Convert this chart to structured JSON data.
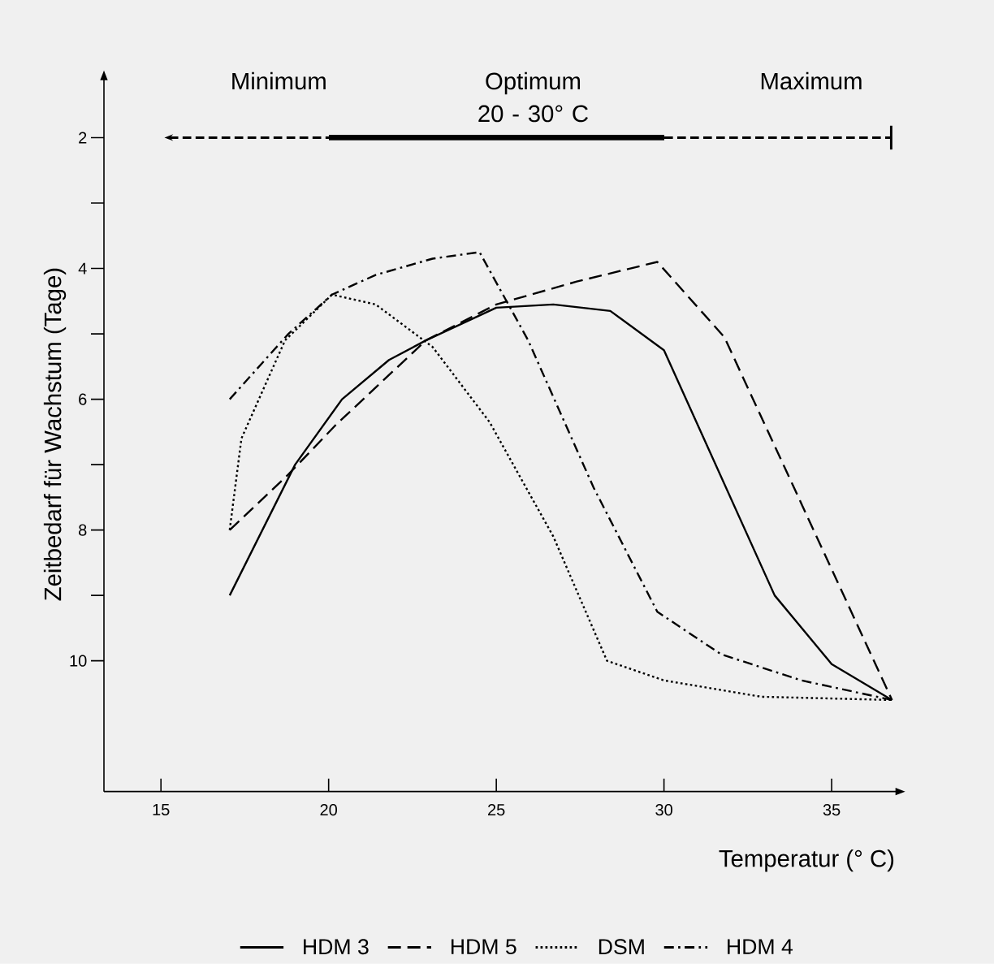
{
  "chart_data": {
    "type": "line",
    "xlabel": "Temperatur (° C)",
    "ylabel": "Zeitbedarf für Wachstum (Tage)",
    "xlim": [
      13.3,
      37
    ],
    "ylim": [
      12,
      1.07
    ],
    "xticks": [
      15,
      20,
      25,
      30,
      35
    ],
    "yticks": [
      2,
      {
        "value": 3,
        "label": null
      },
      4,
      {
        "value": 5,
        "label": null
      },
      6,
      {
        "value": 7,
        "label": null
      },
      8,
      {
        "value": 9,
        "label": null
      },
      10
    ],
    "legend": "bottom",
    "annotations": [
      "Minimum",
      "Optimum 20 - 30° C",
      "Maximum"
    ],
    "series": [
      {
        "name": "HDM 3",
        "color": "#000000",
        "line_style": "solid",
        "x": [
          17.05,
          19.0,
          20.4,
          21.8,
          22.9,
          25.0,
          26.7,
          28.4,
          30.0,
          33.3,
          35.0,
          36.8
        ],
        "values": [
          9.0,
          7.0,
          6.0,
          5.4,
          5.1,
          4.6,
          4.55,
          4.65,
          5.25,
          9.0,
          10.05,
          10.6
        ]
      },
      {
        "name": "HDM 5",
        "color": "#000000",
        "line_style": "dashed",
        "x": [
          17.05,
          18.8,
          20.2,
          22.9,
          25.0,
          27.4,
          29.8,
          31.8,
          34.1,
          36.8
        ],
        "values": [
          8.0,
          7.15,
          6.4,
          5.1,
          4.55,
          4.2,
          3.9,
          5.05,
          7.6,
          10.6
        ]
      },
      {
        "name": "DSM",
        "color": "#000000",
        "line_style": "dotted",
        "x": [
          17.05,
          17.4,
          18.7,
          20.1,
          21.4,
          23.1,
          24.8,
          26.7,
          28.3,
          30.0,
          32.9,
          36.8
        ],
        "values": [
          8.0,
          6.6,
          5.1,
          4.4,
          4.55,
          5.2,
          6.35,
          8.1,
          10.0,
          10.3,
          10.55,
          10.6
        ]
      },
      {
        "name": "HDM 4",
        "color": "#000000",
        "line_style": "dashdot",
        "x": [
          17.05,
          18.8,
          20.1,
          21.4,
          23.1,
          24.5,
          25.95,
          27.9,
          29.8,
          31.7,
          34.1,
          36.8
        ],
        "values": [
          6.0,
          5.0,
          4.4,
          4.1,
          3.85,
          3.75,
          5.1,
          7.35,
          9.25,
          9.9,
          10.3,
          10.6
        ]
      }
    ]
  }
}
